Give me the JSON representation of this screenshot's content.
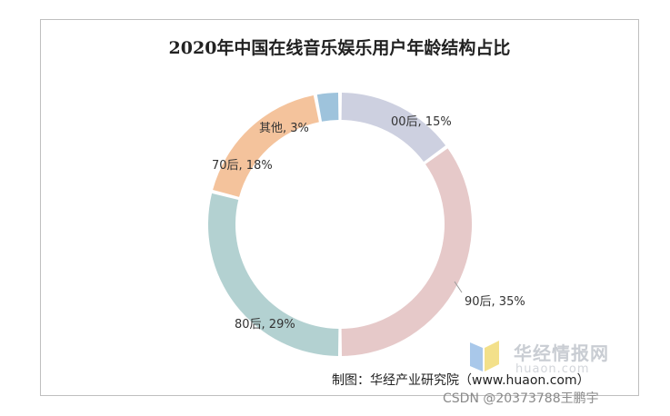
{
  "chart_data": {
    "type": "pie",
    "title": "2020年中国在线音乐娱乐用户年龄结构占比",
    "slices": [
      {
        "label": "00后, 15%",
        "category": "00后",
        "value": 15,
        "color": "#cdd0e0"
      },
      {
        "label": "90后, 35%",
        "category": "90后",
        "value": 35,
        "color": "#e6c9c9"
      },
      {
        "label": "80后, 29%",
        "category": "80后",
        "value": 29,
        "color": "#b3d1d1"
      },
      {
        "label": "70后, 18%",
        "category": "70后",
        "value": 18,
        "color": "#f4c39c"
      },
      {
        "label": "其他, 3%",
        "category": "其他",
        "value": 3,
        "color": "#9ec3dc"
      }
    ]
  },
  "source_text": "制图：华经产业研究院（www.huaon.com）",
  "watermark": {
    "cn": "华经情报网",
    "en": "huaon.com"
  },
  "csdn_credit": "CSDN @20373788王鹏宇"
}
